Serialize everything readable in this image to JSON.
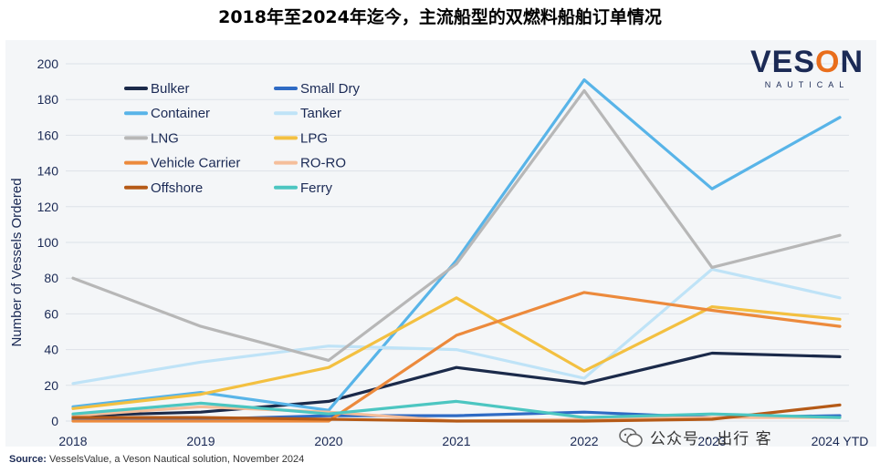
{
  "page_title": "2018年至2024年迄今，主流船型的双燃料船舶订单情况",
  "brand": {
    "name_prefix": "VES",
    "name_o": "O",
    "name_suffix": "N",
    "sub": "NAUTICAL"
  },
  "source": {
    "label": "Source:",
    "text": " VesselsValue, a Veson Nautical solution, November 2024"
  },
  "watermark": {
    "text": "公众号 · 出行 客"
  },
  "chart_data": {
    "type": "line",
    "title": "",
    "xlabel": "",
    "ylabel": "Number of Vessels Ordered",
    "categories": [
      "2018",
      "2019",
      "2020",
      "2021",
      "2022",
      "2023",
      "2024 YTD"
    ],
    "ylim": [
      0,
      200
    ],
    "yticks": [
      0,
      20,
      40,
      60,
      80,
      100,
      120,
      140,
      160,
      180,
      200
    ],
    "legend_position": "top-left",
    "grid": true,
    "series": [
      {
        "name": "Bulker",
        "color": "#1b2a4a",
        "values": [
          3,
          5,
          11,
          30,
          21,
          38,
          36
        ]
      },
      {
        "name": "Small Dry",
        "color": "#2f6bc4",
        "values": [
          1,
          1,
          3,
          3,
          5,
          2,
          3
        ]
      },
      {
        "name": "Container",
        "color": "#58b4e8",
        "values": [
          8,
          16,
          6,
          90,
          191,
          130,
          170
        ]
      },
      {
        "name": "Tanker",
        "color": "#bfe3f7",
        "values": [
          21,
          33,
          42,
          40,
          24,
          85,
          69
        ]
      },
      {
        "name": "LNG",
        "color": "#b7b7b7",
        "values": [
          80,
          53,
          34,
          88,
          185,
          86,
          104
        ]
      },
      {
        "name": "LPG",
        "color": "#f3c041",
        "values": [
          7,
          15,
          30,
          69,
          28,
          64,
          57
        ]
      },
      {
        "name": "Vehicle Carrier",
        "color": "#ec8a3c",
        "values": [
          0,
          0,
          0,
          48,
          72,
          62,
          53
        ]
      },
      {
        "name": "RO-RO",
        "color": "#f5be9a",
        "values": [
          3,
          8,
          5,
          0,
          1,
          2,
          2
        ]
      },
      {
        "name": "Offshore",
        "color": "#b55a17",
        "values": [
          2,
          2,
          1,
          0,
          0,
          1,
          9
        ]
      },
      {
        "name": "Ferry",
        "color": "#4cc6c1",
        "values": [
          4,
          10,
          4,
          11,
          2,
          4,
          2
        ]
      }
    ]
  }
}
